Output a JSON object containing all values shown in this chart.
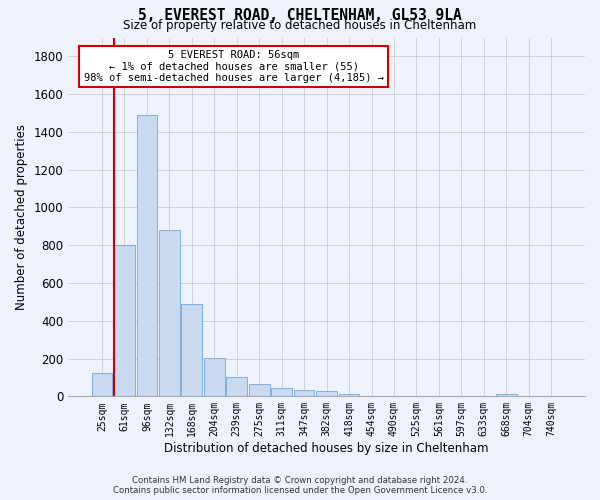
{
  "title": "5, EVEREST ROAD, CHELTENHAM, GL53 9LA",
  "subtitle": "Size of property relative to detached houses in Cheltenham",
  "xlabel": "Distribution of detached houses by size in Cheltenham",
  "ylabel": "Number of detached properties",
  "categories": [
    "25sqm",
    "61sqm",
    "96sqm",
    "132sqm",
    "168sqm",
    "204sqm",
    "239sqm",
    "275sqm",
    "311sqm",
    "347sqm",
    "382sqm",
    "418sqm",
    "454sqm",
    "490sqm",
    "525sqm",
    "561sqm",
    "597sqm",
    "633sqm",
    "668sqm",
    "704sqm",
    "740sqm"
  ],
  "values": [
    125,
    800,
    1490,
    880,
    490,
    205,
    105,
    65,
    42,
    35,
    27,
    14,
    0,
    0,
    0,
    0,
    0,
    0,
    14,
    0,
    0
  ],
  "bar_color": "#c9d9f0",
  "bar_edge_color": "#6fa8dc",
  "grid_color": "#cccccc",
  "annotation_text_line1": "5 EVEREST ROAD: 56sqm",
  "annotation_text_line2": "← 1% of detached houses are smaller (55)",
  "annotation_text_line3": "98% of semi-detached houses are larger (4,185) →",
  "annotation_box_facecolor": "#ffffff",
  "annotation_box_edgecolor": "#cc0000",
  "red_line_color": "#cc0000",
  "ylim": [
    0,
    1900
  ],
  "yticks": [
    0,
    200,
    400,
    600,
    800,
    1000,
    1200,
    1400,
    1600,
    1800
  ],
  "footer_line1": "Contains HM Land Registry data © Crown copyright and database right 2024.",
  "footer_line2": "Contains public sector information licensed under the Open Government Licence v3.0.",
  "bg_color": "#eef2fb"
}
